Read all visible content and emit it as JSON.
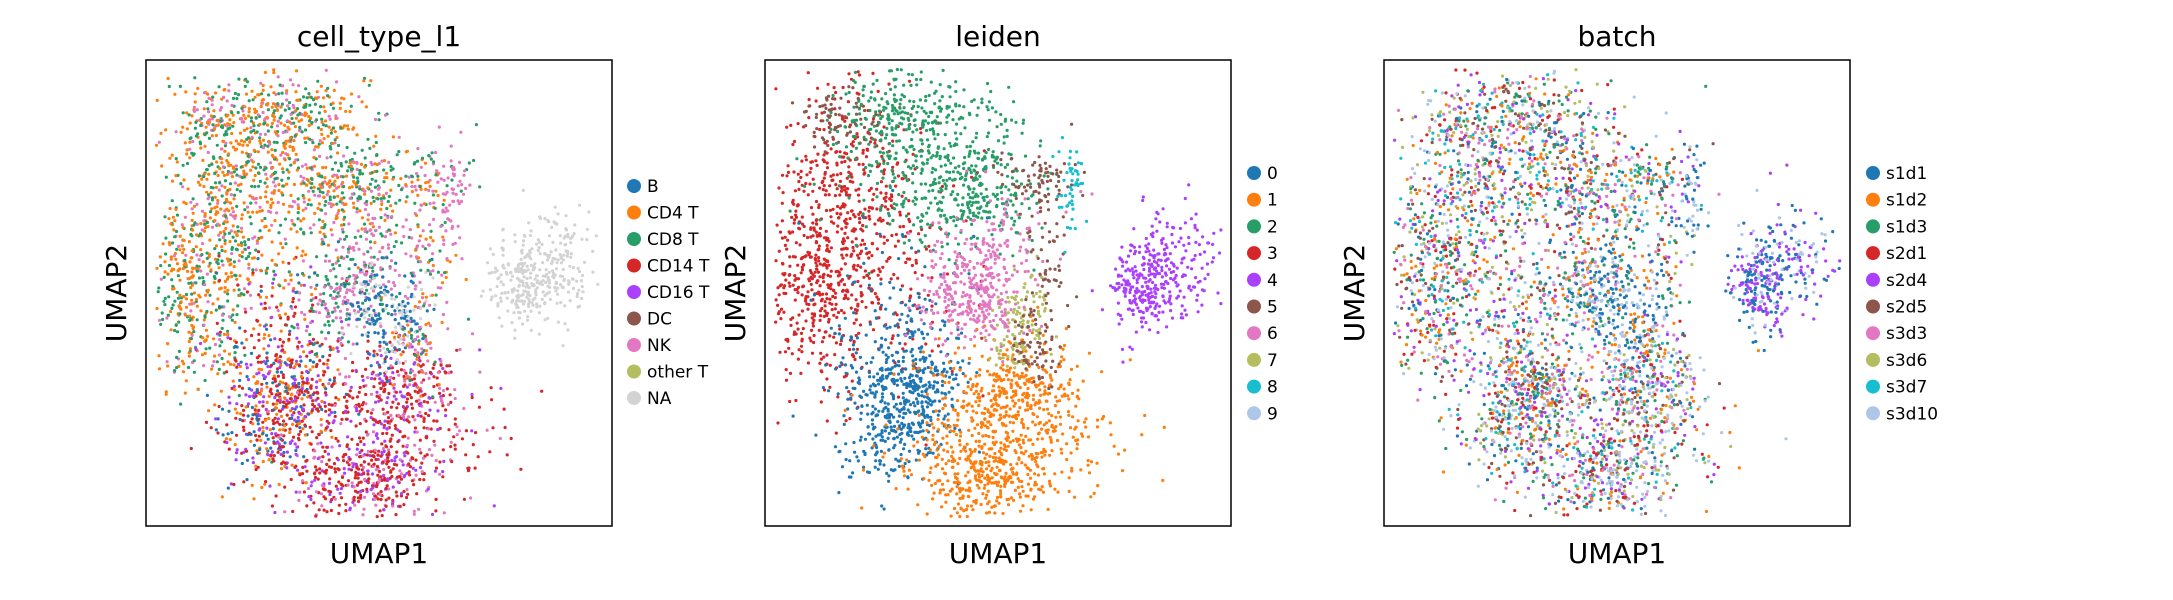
{
  "chart_data": [
    {
      "type": "scatter",
      "title": "cell_type_l1",
      "xlabel": "UMAP1",
      "ylabel": "UMAP2",
      "legend": "right",
      "grid": false,
      "categories": [
        {
          "label": "B",
          "color": "#1f77b4"
        },
        {
          "label": "CD4 T",
          "color": "#ff7f0e"
        },
        {
          "label": "CD8 T",
          "color": "#279e68"
        },
        {
          "label": "CD14 T",
          "color": "#d62728"
        },
        {
          "label": "CD16 T",
          "color": "#aa40fc"
        },
        {
          "label": "DC",
          "color": "#8c564b"
        },
        {
          "label": "NK",
          "color": "#e377c2"
        },
        {
          "label": "other T",
          "color": "#b5bd61"
        },
        {
          "label": "NA",
          "color": "#d3d3d3"
        }
      ]
    },
    {
      "type": "scatter",
      "title": "leiden",
      "xlabel": "UMAP1",
      "ylabel": "UMAP2",
      "legend": "right",
      "grid": false,
      "categories": [
        {
          "label": "0",
          "color": "#1f77b4"
        },
        {
          "label": "1",
          "color": "#ff7f0e"
        },
        {
          "label": "2",
          "color": "#279e68"
        },
        {
          "label": "3",
          "color": "#d62728"
        },
        {
          "label": "4",
          "color": "#aa40fc"
        },
        {
          "label": "5",
          "color": "#8c564b"
        },
        {
          "label": "6",
          "color": "#e377c2"
        },
        {
          "label": "7",
          "color": "#b5bd61"
        },
        {
          "label": "8",
          "color": "#17becf"
        },
        {
          "label": "9",
          "color": "#aec7e8"
        }
      ]
    },
    {
      "type": "scatter",
      "title": "batch",
      "xlabel": "UMAP1",
      "ylabel": "UMAP2",
      "legend": "right",
      "grid": false,
      "categories": [
        {
          "label": "s1d1",
          "color": "#1f77b4"
        },
        {
          "label": "s1d2",
          "color": "#ff7f0e"
        },
        {
          "label": "s1d3",
          "color": "#279e68"
        },
        {
          "label": "s2d1",
          "color": "#d62728"
        },
        {
          "label": "s2d4",
          "color": "#aa40fc"
        },
        {
          "label": "s2d5",
          "color": "#8c564b"
        },
        {
          "label": "s3d3",
          "color": "#e377c2"
        },
        {
          "label": "s3d6",
          "color": "#b5bd61"
        },
        {
          "label": "s3d7",
          "color": "#17becf"
        },
        {
          "label": "s3d10",
          "color": "#aec7e8"
        }
      ]
    }
  ]
}
